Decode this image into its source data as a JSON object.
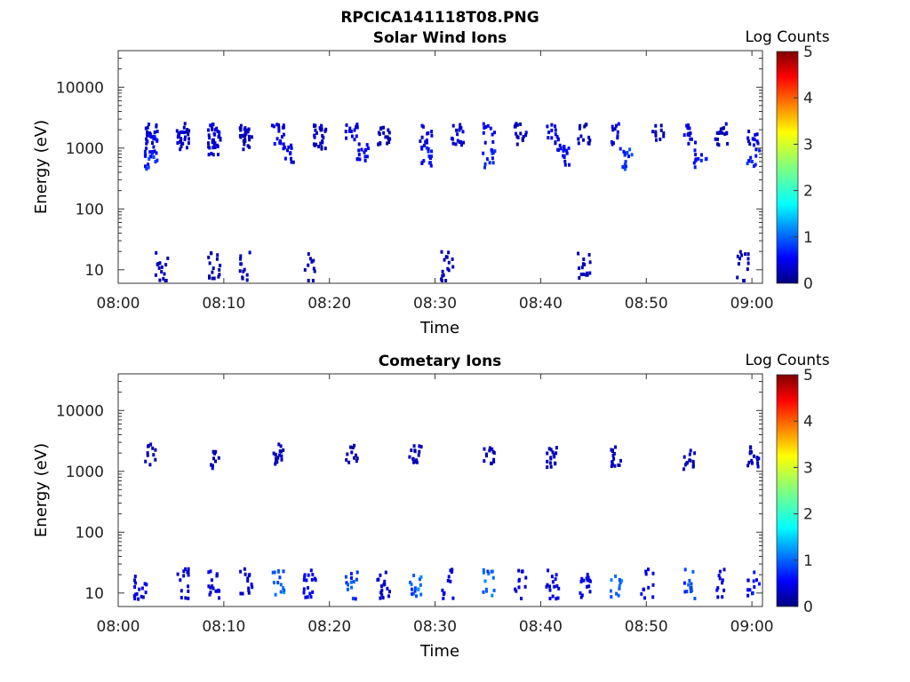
{
  "figure_title": "RPCICA141118T08.PNG",
  "colorbar": {
    "label": "Log Counts",
    "ticks": [
      "0",
      "1",
      "2",
      "3",
      "4",
      "5"
    ],
    "range": [
      0,
      5
    ],
    "colormap": "jet"
  },
  "chart_data": [
    {
      "type": "heatmap",
      "title": "Solar Wind Ions",
      "xlabel": "Time",
      "ylabel": "Energy (eV)",
      "xticks": [
        "08:00",
        "08:10",
        "08:20",
        "08:30",
        "08:40",
        "08:50",
        "09:00"
      ],
      "xlim": [
        "08:00",
        "09:01"
      ],
      "yticks": [
        "10",
        "100",
        "1000",
        "10000"
      ],
      "yscale": "log",
      "ylim": [
        6,
        40000
      ],
      "scan_times": [
        "08:03",
        "08:06",
        "08:09",
        "08:12",
        "08:15",
        "08:19",
        "08:22",
        "08:25",
        "08:29",
        "08:32",
        "08:35",
        "08:38",
        "08:41",
        "08:44",
        "08:47",
        "08:51",
        "08:54",
        "08:57",
        "09:00"
      ],
      "cells": [
        {
          "t": "08:03",
          "e": 1800,
          "v": 0.4
        },
        {
          "t": "08:03",
          "e": 1200,
          "v": 0.6
        },
        {
          "t": "08:03",
          "e": 700,
          "v": 0.9
        },
        {
          "t": "08:06",
          "e": 1800,
          "v": 0.3
        },
        {
          "t": "08:06",
          "e": 1500,
          "v": 0.4
        },
        {
          "t": "08:09",
          "e": 1800,
          "v": 0.5
        },
        {
          "t": "08:09",
          "e": 1200,
          "v": 0.4
        },
        {
          "t": "08:12",
          "e": 1800,
          "v": 0.4
        },
        {
          "t": "08:12",
          "e": 1500,
          "v": 0.3
        },
        {
          "t": "08:15",
          "e": 1800,
          "v": 0.5
        },
        {
          "t": "08:16",
          "e": 900,
          "v": 0.5
        },
        {
          "t": "08:19",
          "e": 1800,
          "v": 0.4
        },
        {
          "t": "08:19",
          "e": 1500,
          "v": 0.3
        },
        {
          "t": "08:22",
          "e": 1800,
          "v": 0.5
        },
        {
          "t": "08:23",
          "e": 900,
          "v": 0.6
        },
        {
          "t": "08:25",
          "e": 1800,
          "v": 0.3
        },
        {
          "t": "08:29",
          "e": 1800,
          "v": 0.5
        },
        {
          "t": "08:29",
          "e": 800,
          "v": 0.7
        },
        {
          "t": "08:32",
          "e": 1800,
          "v": 0.4
        },
        {
          "t": "08:35",
          "e": 1800,
          "v": 0.5
        },
        {
          "t": "08:35",
          "e": 700,
          "v": 0.8
        },
        {
          "t": "08:38",
          "e": 1800,
          "v": 0.3
        },
        {
          "t": "08:41",
          "e": 1800,
          "v": 0.5
        },
        {
          "t": "08:42",
          "e": 800,
          "v": 0.6
        },
        {
          "t": "08:44",
          "e": 1800,
          "v": 0.3
        },
        {
          "t": "08:47",
          "e": 1800,
          "v": 0.5
        },
        {
          "t": "08:48",
          "e": 700,
          "v": 0.9
        },
        {
          "t": "08:51",
          "e": 1800,
          "v": 0.3
        },
        {
          "t": "08:54",
          "e": 1800,
          "v": 0.5
        },
        {
          "t": "08:55",
          "e": 700,
          "v": 0.7
        },
        {
          "t": "08:57",
          "e": 1800,
          "v": 0.3
        },
        {
          "t": "09:00",
          "e": 1800,
          "v": 0.5
        },
        {
          "t": "09:00",
          "e": 800,
          "v": 0.8
        },
        {
          "t": "08:04",
          "e": 12,
          "v": 0.3
        },
        {
          "t": "08:09",
          "e": 12,
          "v": 0.2
        },
        {
          "t": "08:12",
          "e": 12,
          "v": 0.3
        },
        {
          "t": "08:18",
          "e": 12,
          "v": 0.3
        },
        {
          "t": "08:31",
          "e": 12,
          "v": 0.3
        },
        {
          "t": "08:44",
          "e": 12,
          "v": 0.3
        },
        {
          "t": "08:59",
          "e": 12,
          "v": 0.3
        }
      ]
    },
    {
      "type": "heatmap",
      "title": "Cometary Ions",
      "xlabel": "Time",
      "ylabel": "Energy (eV)",
      "xticks": [
        "08:00",
        "08:10",
        "08:20",
        "08:30",
        "08:40",
        "08:50",
        "09:00"
      ],
      "xlim": [
        "08:00",
        "09:01"
      ],
      "yticks": [
        "10",
        "100",
        "1000",
        "10000"
      ],
      "yscale": "log",
      "ylim": [
        6,
        40000
      ],
      "scan_times": [
        "08:03",
        "08:09",
        "08:15",
        "08:22",
        "08:28",
        "08:35",
        "08:41",
        "08:47",
        "08:54",
        "09:00"
      ],
      "cells": [
        {
          "t": "08:03",
          "e": 2000,
          "v": 0.3
        },
        {
          "t": "08:09",
          "e": 1700,
          "v": 0.3
        },
        {
          "t": "08:15",
          "e": 2000,
          "v": 0.3
        },
        {
          "t": "08:22",
          "e": 2000,
          "v": 0.3
        },
        {
          "t": "08:28",
          "e": 2000,
          "v": 0.3
        },
        {
          "t": "08:35",
          "e": 1800,
          "v": 0.3
        },
        {
          "t": "08:41",
          "e": 1800,
          "v": 0.3
        },
        {
          "t": "08:47",
          "e": 1800,
          "v": 0.3
        },
        {
          "t": "08:54",
          "e": 1700,
          "v": 0.3
        },
        {
          "t": "09:00",
          "e": 1800,
          "v": 0.3
        },
        {
          "t": "08:02",
          "e": 15,
          "v": 0.5
        },
        {
          "t": "08:06",
          "e": 15,
          "v": 0.4
        },
        {
          "t": "08:09",
          "e": 15,
          "v": 0.5
        },
        {
          "t": "08:12",
          "e": 15,
          "v": 0.4
        },
        {
          "t": "08:15",
          "e": 15,
          "v": 1.2
        },
        {
          "t": "08:18",
          "e": 15,
          "v": 0.6
        },
        {
          "t": "08:22",
          "e": 15,
          "v": 1.0
        },
        {
          "t": "08:25",
          "e": 15,
          "v": 0.4
        },
        {
          "t": "08:28",
          "e": 15,
          "v": 1.2
        },
        {
          "t": "08:31",
          "e": 15,
          "v": 0.5
        },
        {
          "t": "08:35",
          "e": 15,
          "v": 1.1
        },
        {
          "t": "08:38",
          "e": 15,
          "v": 0.4
        },
        {
          "t": "08:41",
          "e": 15,
          "v": 0.5
        },
        {
          "t": "08:44",
          "e": 15,
          "v": 0.5
        },
        {
          "t": "08:47",
          "e": 15,
          "v": 1.3
        },
        {
          "t": "08:50",
          "e": 15,
          "v": 0.6
        },
        {
          "t": "08:54",
          "e": 15,
          "v": 1.0
        },
        {
          "t": "08:57",
          "e": 15,
          "v": 0.5
        },
        {
          "t": "09:00",
          "e": 15,
          "v": 0.7
        }
      ]
    }
  ]
}
